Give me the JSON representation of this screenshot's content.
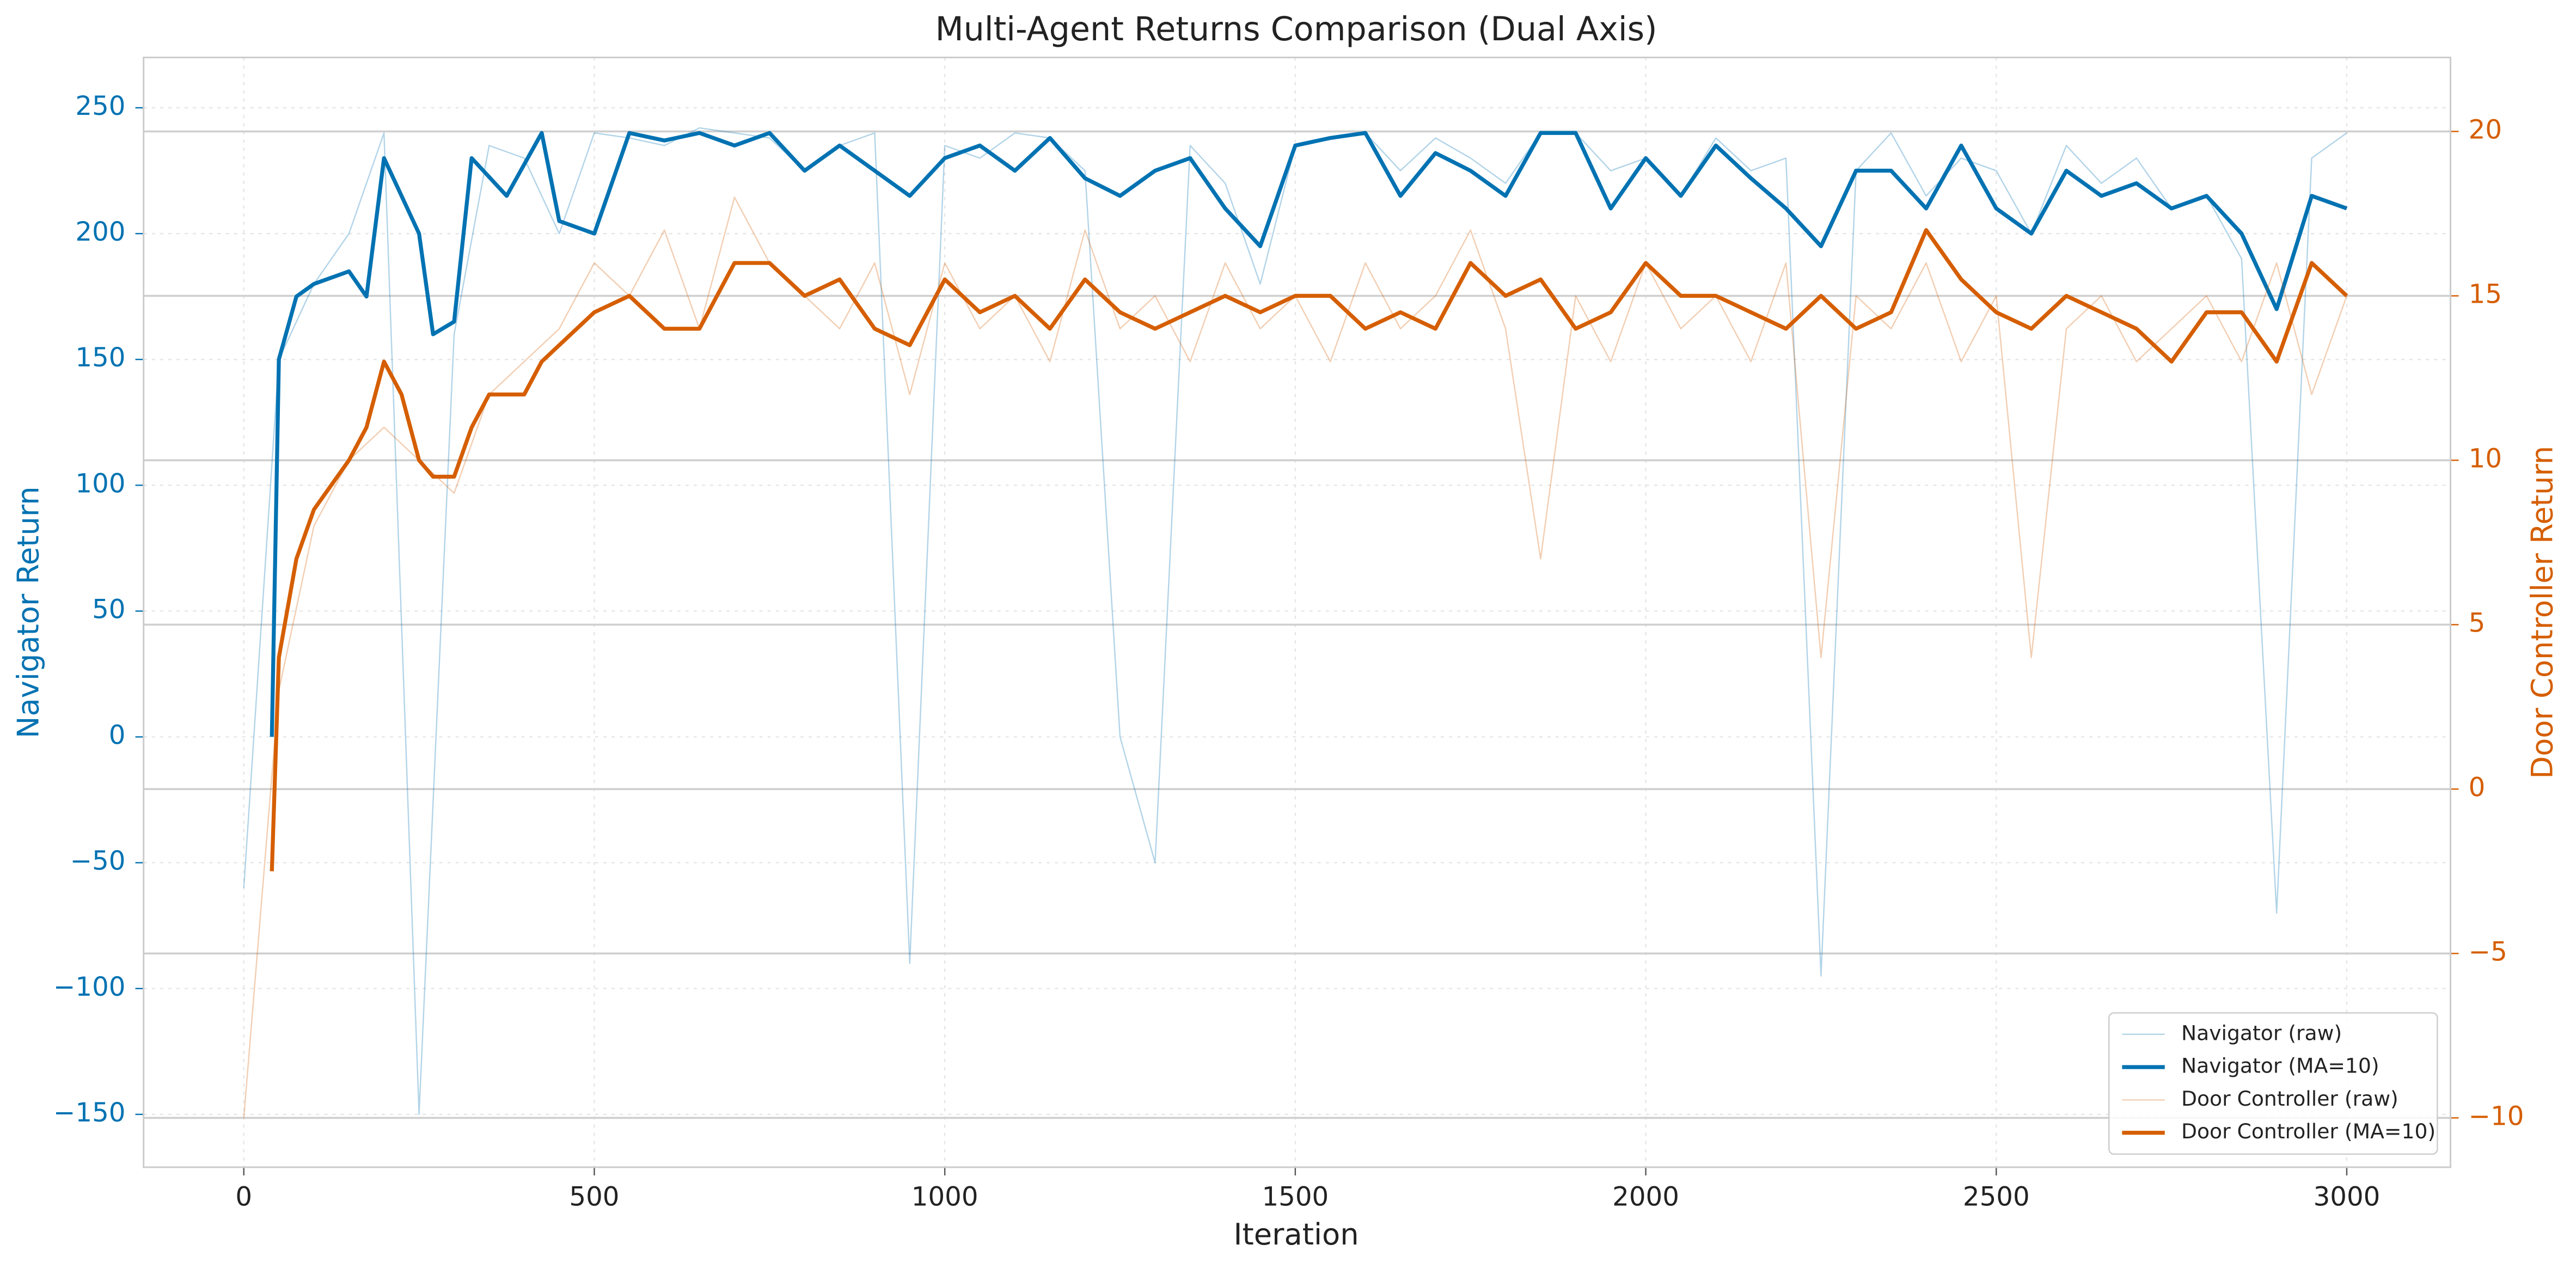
{
  "chart_data": {
    "type": "line",
    "title": "Multi-Agent Returns Comparison (Dual Axis)",
    "xlabel": "Iteration",
    "ylabel": "Navigator Return",
    "y2label": "Door Controller Return",
    "xlim": [
      -143,
      3148
    ],
    "xticks": [
      0,
      500,
      1000,
      1500,
      2000,
      2500,
      3000
    ],
    "ylim": [
      -171,
      270
    ],
    "yticks": [
      {
        "value": -150,
        "label": "−150"
      },
      {
        "value": -100,
        "label": "−100"
      },
      {
        "value": -50,
        "label": "−50"
      },
      0,
      50,
      100,
      150,
      200,
      250
    ],
    "y2lim": [
      -11.5,
      22.25
    ],
    "y2ticks": [
      {
        "value": -10,
        "label": "−10"
      },
      {
        "value": -5,
        "label": "−5"
      },
      0,
      5,
      10,
      15,
      20
    ],
    "grid": true,
    "legend": "lower right",
    "series": [
      {
        "name": "Navigator (raw)",
        "color": "#0072b2",
        "axis": "y",
        "style": "raw",
        "x": [
          0,
          50,
          100,
          150,
          200,
          250,
          300,
          350,
          400,
          450,
          500,
          550,
          600,
          650,
          700,
          750,
          800,
          850,
          900,
          950,
          1000,
          1050,
          1100,
          1150,
          1200,
          1250,
          1300,
          1350,
          1400,
          1450,
          1500,
          1550,
          1600,
          1650,
          1700,
          1750,
          1800,
          1850,
          1900,
          1950,
          2000,
          2050,
          2100,
          2150,
          2200,
          2250,
          2300,
          2350,
          2400,
          2450,
          2500,
          2550,
          2600,
          2650,
          2700,
          2750,
          2800,
          2850,
          2900,
          2950,
          3000
        ],
        "values": [
          -60,
          150,
          180,
          200,
          240,
          -150,
          160,
          235,
          230,
          200,
          240,
          238,
          235,
          242,
          240,
          238,
          225,
          235,
          240,
          -90,
          235,
          230,
          240,
          238,
          225,
          0,
          -50,
          235,
          220,
          180,
          235,
          238,
          240,
          225,
          238,
          230,
          220,
          240,
          240,
          225,
          230,
          215,
          238,
          225,
          230,
          -95,
          225,
          240,
          215,
          230,
          225,
          200,
          235,
          220,
          230,
          210,
          215,
          190,
          -70,
          230,
          240
        ]
      },
      {
        "name": "Navigator (MA=10)",
        "color": "#0072b2",
        "axis": "y",
        "style": "ma",
        "x": [
          40,
          50,
          75,
          100,
          150,
          175,
          200,
          250,
          270,
          300,
          325,
          375,
          425,
          450,
          500,
          550,
          600,
          650,
          700,
          750,
          800,
          850,
          900,
          950,
          1000,
          1050,
          1100,
          1150,
          1200,
          1250,
          1300,
          1350,
          1400,
          1450,
          1500,
          1550,
          1600,
          1650,
          1700,
          1750,
          1800,
          1850,
          1900,
          1950,
          2000,
          2050,
          2100,
          2150,
          2200,
          2250,
          2300,
          2350,
          2400,
          2450,
          2500,
          2550,
          2600,
          2650,
          2700,
          2750,
          2800,
          2850,
          2900,
          2950,
          3000
        ],
        "values": [
          0,
          150,
          175,
          180,
          185,
          175,
          230,
          200,
          160,
          165,
          230,
          215,
          240,
          205,
          200,
          240,
          237,
          240,
          235,
          240,
          225,
          235,
          225,
          215,
          230,
          235,
          225,
          238,
          222,
          215,
          225,
          230,
          210,
          195,
          235,
          238,
          240,
          215,
          232,
          225,
          215,
          240,
          240,
          210,
          230,
          215,
          235,
          222,
          210,
          195,
          225,
          225,
          210,
          235,
          210,
          200,
          225,
          215,
          220,
          210,
          215,
          200,
          170,
          215,
          210
        ]
      },
      {
        "name": "Door Controller (raw)",
        "color": "#d55e00",
        "axis": "y2",
        "style": "raw",
        "x": [
          0,
          50,
          100,
          150,
          200,
          250,
          300,
          350,
          400,
          450,
          500,
          550,
          600,
          650,
          700,
          750,
          800,
          850,
          900,
          950,
          1000,
          1050,
          1100,
          1150,
          1200,
          1250,
          1300,
          1350,
          1400,
          1450,
          1500,
          1550,
          1600,
          1650,
          1700,
          1750,
          1800,
          1850,
          1900,
          1950,
          2000,
          2050,
          2100,
          2150,
          2200,
          2250,
          2300,
          2350,
          2400,
          2450,
          2500,
          2550,
          2600,
          2650,
          2700,
          2750,
          2800,
          2850,
          2900,
          2950,
          3000
        ],
        "values": [
          -10,
          3,
          8,
          10,
          11,
          10,
          9,
          12,
          13,
          14,
          16,
          15,
          17,
          14,
          18,
          16,
          15,
          14,
          16,
          12,
          16,
          14,
          15,
          13,
          17,
          14,
          15,
          13,
          16,
          14,
          15,
          13,
          16,
          14,
          15,
          17,
          14,
          7,
          15,
          13,
          16,
          14,
          15,
          13,
          16,
          4,
          15,
          14,
          16,
          13,
          15,
          4,
          14,
          15,
          13,
          14,
          15,
          13,
          16,
          12,
          15
        ]
      },
      {
        "name": "Door Controller (MA=10)",
        "color": "#d55e00",
        "axis": "y2",
        "style": "ma",
        "x": [
          40,
          50,
          75,
          100,
          150,
          175,
          200,
          225,
          250,
          270,
          300,
          325,
          350,
          400,
          425,
          450,
          500,
          550,
          600,
          650,
          700,
          750,
          800,
          850,
          900,
          950,
          1000,
          1050,
          1100,
          1150,
          1200,
          1250,
          1300,
          1350,
          1400,
          1450,
          1500,
          1550,
          1600,
          1650,
          1700,
          1750,
          1800,
          1850,
          1900,
          1950,
          2000,
          2050,
          2100,
          2150,
          2200,
          2250,
          2300,
          2350,
          2400,
          2450,
          2500,
          2550,
          2600,
          2650,
          2700,
          2750,
          2800,
          2850,
          2900,
          2950,
          3000
        ],
        "values": [
          -2.5,
          4,
          7,
          8.5,
          10,
          11,
          13,
          12,
          10,
          9.5,
          9.5,
          11,
          12,
          12,
          13,
          13.5,
          14.5,
          15,
          14,
          14,
          16,
          16,
          15,
          15.5,
          14,
          13.5,
          15.5,
          14.5,
          15,
          14,
          15.5,
          14.5,
          14,
          14.5,
          15,
          14.5,
          15,
          15,
          14,
          14.5,
          14,
          16,
          15,
          15.5,
          14,
          14.5,
          16,
          15,
          15,
          14.5,
          14,
          15,
          14,
          14.5,
          17,
          15.5,
          14.5,
          14,
          15,
          14.5,
          14,
          13,
          14.5,
          14.5,
          13,
          16,
          15
        ]
      }
    ]
  }
}
